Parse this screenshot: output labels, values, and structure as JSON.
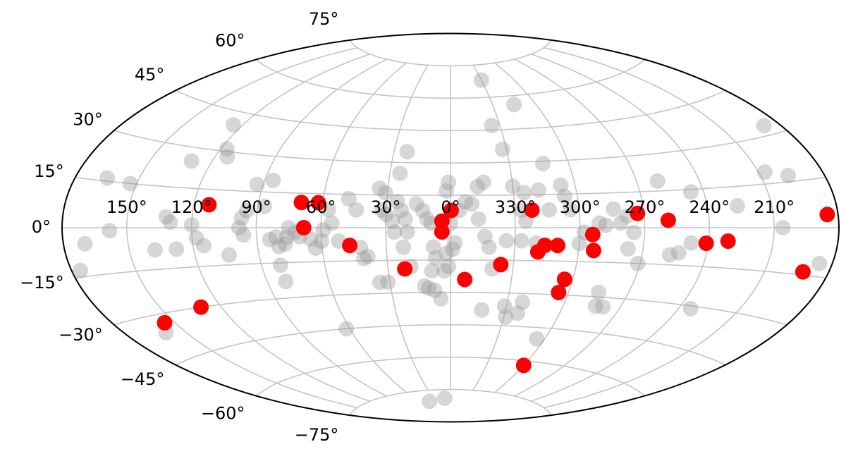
{
  "chart_data": {
    "type": "scatter",
    "projection": "aitoff",
    "xreversed": true,
    "grid": true,
    "xlim": [
      -180,
      180
    ],
    "ylim": [
      -90,
      90
    ],
    "xticks": [
      {
        "value": 150,
        "label": "150°"
      },
      {
        "value": 120,
        "label": "120°"
      },
      {
        "value": 90,
        "label": "90°"
      },
      {
        "value": 60,
        "label": "60°"
      },
      {
        "value": 30,
        "label": "30°"
      },
      {
        "value": 0,
        "label": "0°"
      },
      {
        "value": 330,
        "label": "330°"
      },
      {
        "value": 300,
        "label": "300°"
      },
      {
        "value": 270,
        "label": "270°"
      },
      {
        "value": 240,
        "label": "240°"
      },
      {
        "value": 210,
        "label": "210°"
      }
    ],
    "yticks": [
      {
        "value": 75,
        "label": "75°"
      },
      {
        "value": 60,
        "label": "60°"
      },
      {
        "value": 45,
        "label": "45°"
      },
      {
        "value": 30,
        "label": "30°"
      },
      {
        "value": 15,
        "label": "15°"
      },
      {
        "value": 0,
        "label": "0°"
      },
      {
        "value": -15,
        "label": "−15°"
      },
      {
        "value": -30,
        "label": "−30°"
      },
      {
        "value": -45,
        "label": "−45°"
      },
      {
        "value": -60,
        "label": "−60°"
      },
      {
        "value": -75,
        "label": "−75°"
      }
    ],
    "series": [
      {
        "color": "#999999",
        "alpha": 0.4,
        "x": [
          176,
          170,
          165,
          158,
          153,
          138,
          160,
          132,
          130,
          128,
          120,
          118,
          115,
          130,
          125,
          117,
          114,
          104,
          98,
          96,
          95,
          97,
          93,
          87,
          86,
          84,
          81,
          80,
          81,
          81,
          77,
          76,
          75,
          72,
          70,
          65,
          63,
          60,
          59,
          57,
          55,
          52,
          48,
          44,
          42,
          41,
          39,
          34,
          32,
          30,
          27,
          26,
          25,
          23,
          25,
          21,
          23,
          20,
          22,
          19,
          35,
          31,
          62,
          31,
          16,
          13,
          11,
          9,
          8,
          7,
          9,
          13,
          11,
          8,
          5,
          3,
          1,
          2,
          359,
          358,
          0,
          356,
          1,
          2,
          353,
          347,
          344,
          350,
          347,
          344,
          342,
          340,
          343,
          330,
          335,
          332,
          330,
          325,
          327,
          325,
          315,
          318,
          313,
          314,
          307,
          306,
          304,
          334,
          327,
          320,
          331,
          323,
          329,
          322,
          305,
          300,
          298,
          291,
          288,
          284,
          281,
          278,
          275,
          277,
          271,
          285,
          283,
          279,
          260,
          253,
          248,
          257,
          246,
          234,
          226,
          207,
          197,
          206,
          186,
          188,
          40,
          10
        ],
        "y": [
          -13,
          -5,
          16,
          -1,
          15,
          -8,
          -36,
          4,
          2,
          -8,
          1,
          -4,
          -7,
          25,
          40,
          31,
          28,
          -11,
          0,
          -3,
          7,
          4,
          18,
          9,
          20,
          -5,
          -4,
          -8,
          -16,
          -23,
          -7,
          -4,
          0,
          -2,
          -4,
          -5,
          -9,
          -6,
          -1,
          8,
          2,
          -6,
          13,
          8,
          -9,
          -14,
          -13,
          18,
          8,
          6,
          3,
          -2,
          12,
          35,
          25,
          4,
          8,
          -2,
          -9,
          -18,
          -25,
          -25,
          -45,
          16,
          11,
          8,
          4,
          2,
          -9,
          -14,
          -20,
          -27,
          -28,
          -29,
          -33,
          -20,
          -18,
          -12,
          -10,
          -7,
          2,
          8,
          21,
          17,
          12,
          19,
          21,
          11,
          4,
          -4,
          -9,
          -19,
          -38,
          68,
          47,
          36,
          19,
          16,
          8,
          3,
          56,
          17,
          29,
          8,
          19,
          14,
          8,
          -6,
          -6,
          -7,
          -36,
          -39,
          -41,
          -34,
          -50,
          -7,
          -2,
          2,
          1,
          8,
          2,
          5,
          -2,
          -9,
          -15,
          -28,
          -34,
          -34,
          19,
          -10,
          -6,
          -11,
          14,
          -31,
          8,
          19,
          17,
          0,
          -11,
          33,
          -80,
          -79
        ]
      },
      {
        "color": "#ff0000",
        "alpha": 1,
        "x": [
          113,
          70,
          62,
          68,
          47,
          359.7,
          4,
          4,
          22,
          353,
          336,
          322,
          319,
          316,
          310,
          304,
          305,
          294,
          293,
          273,
          259,
          241,
          231,
          192,
          185,
          130,
          155,
          300
        ],
        "y": [
          9,
          11,
          11,
          0,
          -8,
          8,
          3,
          -2,
          -19,
          -24,
          -17,
          8,
          -11,
          -8,
          -8,
          -23,
          -29,
          -3,
          -10,
          6,
          3,
          -6,
          -5,
          -14,
          4,
          -30,
          -33,
          -62
        ]
      }
    ]
  }
}
